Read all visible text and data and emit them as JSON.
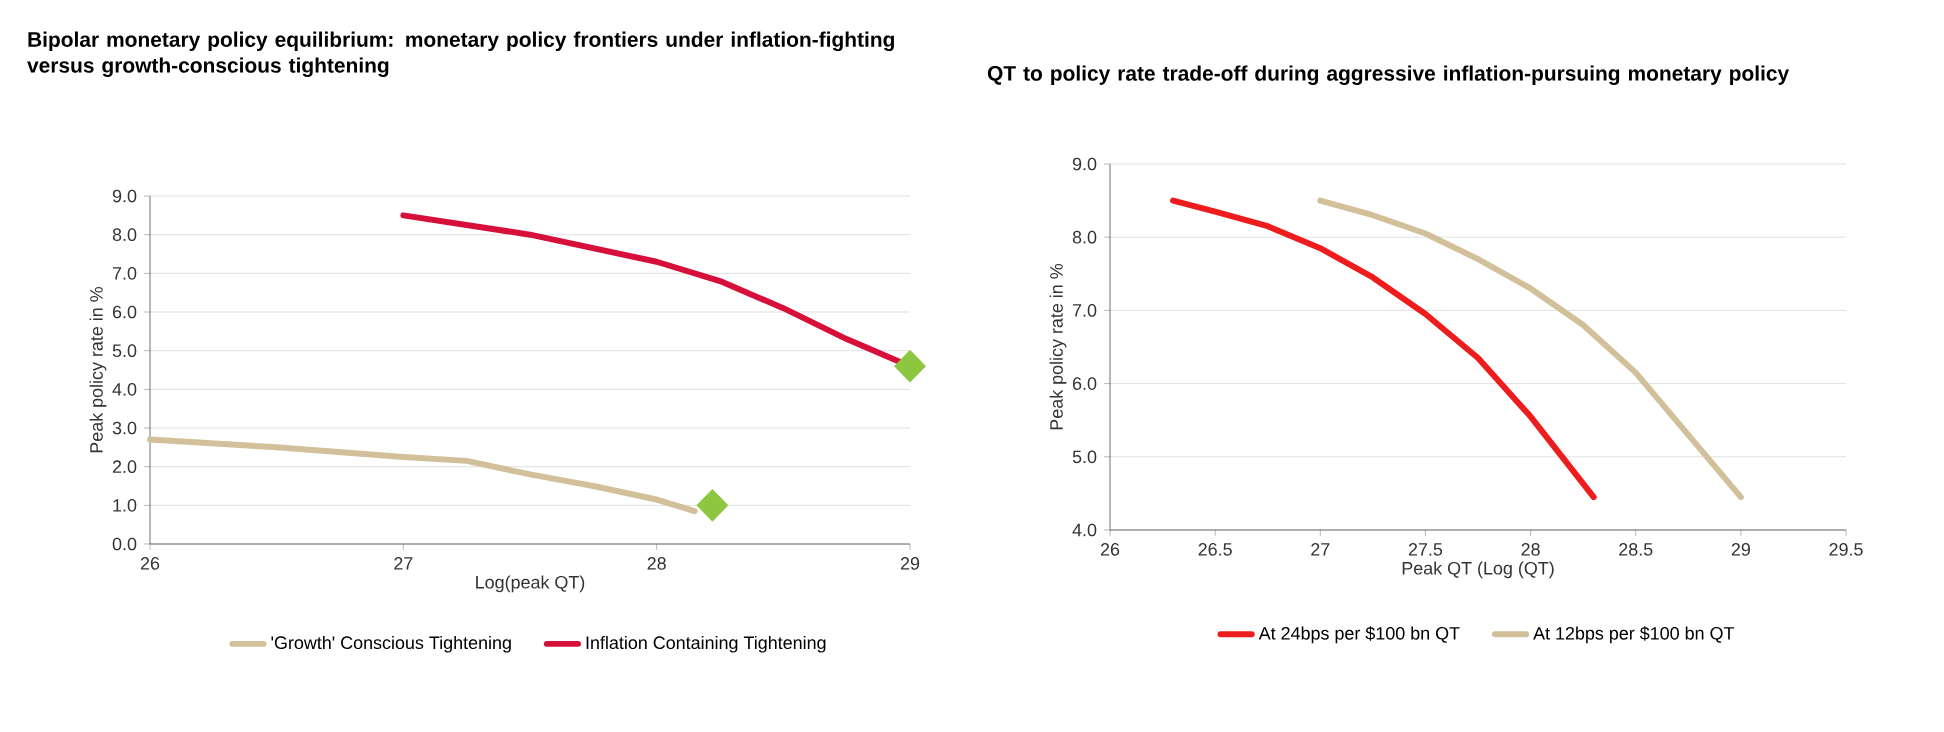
{
  "chart_data": [
    {
      "type": "line",
      "title": "Bipolar monetary policy equilibrium: monetary policy frontiers under inflation-fighting versus growth-conscious tightening",
      "xlabel": "Log(peak QT)",
      "ylabel": "Peak policy rate in %",
      "xlim": [
        26,
        29
      ],
      "xticks": [
        26,
        27,
        28,
        29
      ],
      "ylim": [
        0,
        9
      ],
      "yticks": [
        {
          "value": 0,
          "label": "0.0"
        },
        {
          "value": 1,
          "label": "1.0"
        },
        {
          "value": 2,
          "label": "2.0"
        },
        {
          "value": 3,
          "label": "3.0"
        },
        {
          "value": 4,
          "label": "4.0"
        },
        {
          "value": 5,
          "label": "5.0"
        },
        {
          "value": 6,
          "label": "6.0"
        },
        {
          "value": 7,
          "label": "7.0"
        },
        {
          "value": 8,
          "label": "8.0"
        },
        {
          "value": 9,
          "label": "9.0"
        }
      ],
      "grid": "y",
      "legend": "bottom",
      "marker": "none",
      "series": [
        {
          "name": "'Growth' Conscious Tightening",
          "color": "#d2c09a",
          "x": [
            26,
            26.5,
            27,
            27.25,
            27.5,
            27.75,
            28,
            28.15
          ],
          "values": [
            2.7,
            2.5,
            2.25,
            2.15,
            1.8,
            1.5,
            1.15,
            0.85
          ]
        },
        {
          "name": "Inflation Containing Tightening",
          "color": "#d6103a",
          "x": [
            27,
            27.5,
            28,
            28.25,
            28.5,
            28.75,
            29
          ],
          "values": [
            8.5,
            8.0,
            7.3,
            6.8,
            6.1,
            5.3,
            4.6
          ]
        },
        {
          "type": "scatter",
          "marker": "diamond",
          "color": "#8dc63f",
          "x": [
            29,
            28.22
          ],
          "values": [
            4.6,
            1.0
          ]
        }
      ]
    },
    {
      "type": "line",
      "title": "QT to policy rate trade-off during aggressive inflation-pursuing monetary policy",
      "xlabel": "Peak QT (Log (QT)",
      "ylabel": "Peak policy rate in %",
      "xlim": [
        26,
        29.5
      ],
      "xticks": [
        26,
        26.5,
        27,
        27.5,
        28,
        28.5,
        29,
        29.5
      ],
      "ylim": [
        4,
        9
      ],
      "yticks": [
        {
          "value": 4,
          "label": "4.0"
        },
        {
          "value": 5,
          "label": "5.0"
        },
        {
          "value": 6,
          "label": "6.0"
        },
        {
          "value": 7,
          "label": "7.0"
        },
        {
          "value": 8,
          "label": "8.0"
        },
        {
          "value": 9,
          "label": "9.0"
        }
      ],
      "grid": "y",
      "legend": "bottom",
      "marker": "none",
      "series": [
        {
          "name": "At 24bps per $100 bn QT",
          "color": "#ee1c1c",
          "x": [
            26.3,
            26.5,
            26.75,
            27,
            27.25,
            27.5,
            27.75,
            28,
            28.15,
            28.3
          ],
          "values": [
            8.5,
            8.35,
            8.15,
            7.85,
            7.45,
            6.95,
            6.35,
            5.55,
            5.0,
            4.45
          ]
        },
        {
          "name": "At 12bps per $100 bn QT",
          "color": "#d2c09a",
          "x": [
            27,
            27.25,
            27.5,
            27.75,
            28,
            28.25,
            28.5,
            28.75,
            29
          ],
          "values": [
            8.5,
            8.3,
            8.05,
            7.7,
            7.3,
            6.8,
            6.15,
            5.3,
            4.45
          ]
        }
      ]
    }
  ]
}
